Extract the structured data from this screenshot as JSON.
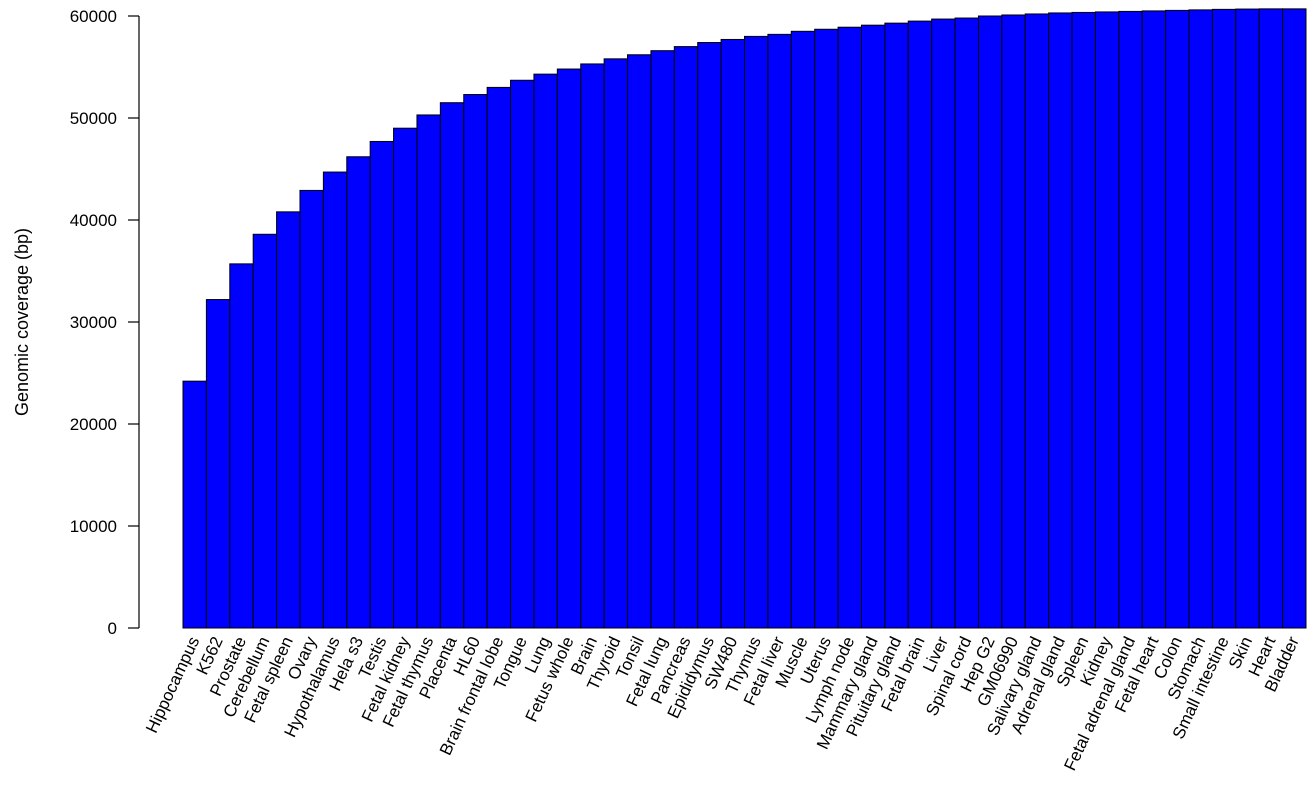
{
  "chart_data": {
    "type": "bar",
    "title": "",
    "xlabel": "",
    "ylabel": "Genomic coverage (bp)",
    "ylim": [
      0,
      60000
    ],
    "yticks": [
      "0",
      "10000",
      "20000",
      "30000",
      "40000",
      "50000",
      "60000"
    ],
    "grid": false,
    "legend": "none",
    "bar_color": "#0000FF",
    "categories": [
      "Hippocampus",
      "K562",
      "Prostate",
      "Cerebellum",
      "Fetal spleen",
      "Ovary",
      "Hypothalamus",
      "Hela s3",
      "Testis",
      "Fetal kidney",
      "Fetal thymus",
      "Placenta",
      "HL60",
      "Brain frontal lobe",
      "Tongue",
      "Lung",
      "Fetus whole",
      "Brain",
      "Thyroid",
      "Tonsil",
      "Fetal lung",
      "Pancreas",
      "Epididymus",
      "SW480",
      "Thymus",
      "Fetal liver",
      "Muscle",
      "Uterus",
      "Lymph node",
      "Mammary gland",
      "Pituitary gland",
      "Fetal brain",
      "Liver",
      "Spinal cord",
      "Hep G2",
      "GM06990",
      "Salivary gland",
      "Adrenal gland",
      "Spleen",
      "Kidney",
      "Fetal adrenal gland",
      "Fetal heart",
      "Colon",
      "Stomach",
      "Small intestine",
      "Skin",
      "Heart",
      "Bladder"
    ],
    "values": [
      24200,
      32200,
      35700,
      38600,
      40800,
      42900,
      44700,
      46200,
      47700,
      49000,
      50300,
      51500,
      52300,
      53000,
      53700,
      54300,
      54800,
      55300,
      55800,
      56200,
      56600,
      57000,
      57400,
      57700,
      58000,
      58200,
      58500,
      58700,
      58900,
      59100,
      59300,
      59500,
      59700,
      59800,
      60000,
      60100,
      60200,
      60300,
      60350,
      60400,
      60450,
      60500,
      60550,
      60600,
      60650,
      60680,
      60700,
      60700
    ]
  }
}
